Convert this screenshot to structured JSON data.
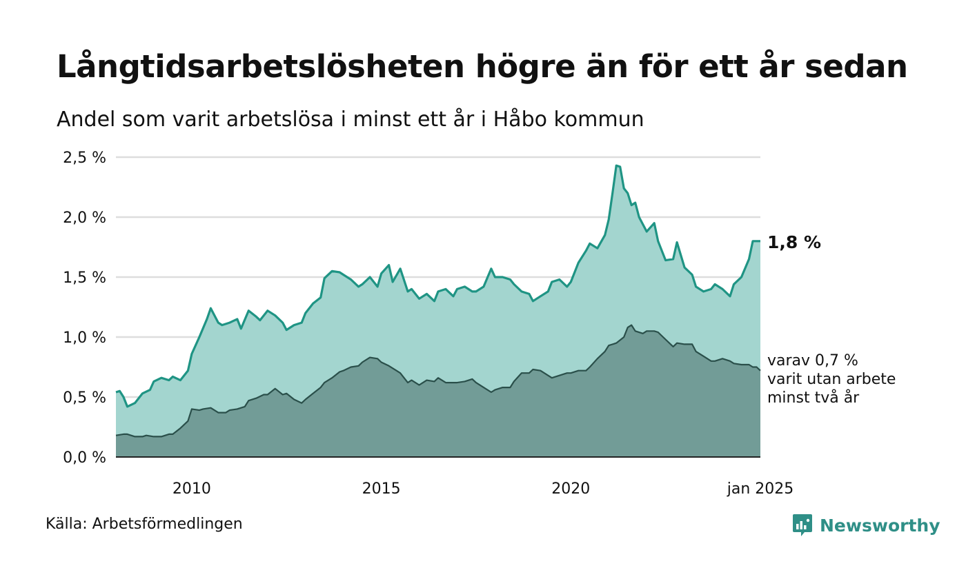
{
  "title": "Långtidsarbetslösheten högre än för ett år sedan",
  "subtitle": "Andel som varit arbetslösa i minst ett år i Håbo kommun",
  "source": "Källa: Arbetsförmedlingen",
  "brand": {
    "name": "Newsworthy",
    "icon": "newsworthy-logo-icon",
    "color": "#2f8f87"
  },
  "colors": {
    "total_line": "#1f9484",
    "total_fill": "#a3d5cf",
    "sub_line": "#2a4f4a",
    "sub_fill": "#729c97",
    "grid": "#dddddd",
    "axis": "#222222"
  },
  "chart_data": {
    "type": "area",
    "xlabel": "",
    "ylabel": "",
    "ylim": [
      0,
      2.5
    ],
    "y_ticks": [
      0,
      0.5,
      1.0,
      1.5,
      2.0,
      2.5
    ],
    "y_tick_labels": [
      "0,0 %",
      "0,5 %",
      "1,0 %",
      "1,5 %",
      "2,0 %",
      "2,5 %"
    ],
    "x_range": [
      2008.0,
      2025.0
    ],
    "x_ticks": [
      2010,
      2015,
      2020,
      2025
    ],
    "x_tick_labels": [
      "2010",
      "2015",
      "2020",
      "jan 2025"
    ],
    "grid": "horizontal",
    "series": [
      {
        "key": "total",
        "x": [
          2008.0,
          2008.1,
          2008.2,
          2008.3,
          2008.5,
          2008.7,
          2008.9,
          2009.0,
          2009.2,
          2009.4,
          2009.5,
          2009.7,
          2009.9,
          2010.0,
          2010.2,
          2010.4,
          2010.5,
          2010.7,
          2010.8,
          2011.0,
          2011.2,
          2011.3,
          2011.5,
          2011.7,
          2011.8,
          2012.0,
          2012.2,
          2012.4,
          2012.5,
          2012.7,
          2012.9,
          2013.0,
          2013.2,
          2013.4,
          2013.5,
          2013.7,
          2013.9,
          2014.0,
          2014.2,
          2014.4,
          2014.5,
          2014.7,
          2014.9,
          2015.0,
          2015.2,
          2015.3,
          2015.5,
          2015.7,
          2015.8,
          2016.0,
          2016.2,
          2016.4,
          2016.5,
          2016.7,
          2016.9,
          2017.0,
          2017.2,
          2017.4,
          2017.5,
          2017.7,
          2017.9,
          2018.0,
          2018.2,
          2018.4,
          2018.5,
          2018.7,
          2018.9,
          2019.0,
          2019.2,
          2019.4,
          2019.5,
          2019.7,
          2019.9,
          2020.0,
          2020.2,
          2020.4,
          2020.5,
          2020.7,
          2020.9,
          2021.0,
          2021.1,
          2021.2,
          2021.3,
          2021.4,
          2021.5,
          2021.6,
          2021.7,
          2021.8,
          2022.0,
          2022.2,
          2022.3,
          2022.5,
          2022.7,
          2022.8,
          2023.0,
          2023.2,
          2023.3,
          2023.5,
          2023.7,
          2023.8,
          2024.0,
          2024.2,
          2024.3,
          2024.5,
          2024.7,
          2024.8,
          2024.9,
          2025.0
        ],
        "values": [
          0.54,
          0.55,
          0.5,
          0.42,
          0.45,
          0.53,
          0.56,
          0.63,
          0.66,
          0.64,
          0.67,
          0.64,
          0.72,
          0.86,
          1.0,
          1.15,
          1.24,
          1.12,
          1.1,
          1.12,
          1.15,
          1.07,
          1.22,
          1.17,
          1.14,
          1.22,
          1.18,
          1.12,
          1.06,
          1.1,
          1.12,
          1.2,
          1.28,
          1.33,
          1.49,
          1.55,
          1.54,
          1.52,
          1.48,
          1.42,
          1.44,
          1.5,
          1.42,
          1.53,
          1.6,
          1.46,
          1.57,
          1.38,
          1.4,
          1.32,
          1.36,
          1.3,
          1.38,
          1.4,
          1.34,
          1.4,
          1.42,
          1.38,
          1.38,
          1.42,
          1.57,
          1.5,
          1.5,
          1.48,
          1.44,
          1.38,
          1.36,
          1.3,
          1.34,
          1.38,
          1.46,
          1.48,
          1.42,
          1.46,
          1.62,
          1.72,
          1.78,
          1.74,
          1.85,
          1.98,
          2.2,
          2.43,
          2.42,
          2.24,
          2.2,
          2.1,
          2.12,
          2.0,
          1.88,
          1.95,
          1.8,
          1.64,
          1.65,
          1.79,
          1.58,
          1.52,
          1.42,
          1.38,
          1.4,
          1.44,
          1.4,
          1.34,
          1.44,
          1.5,
          1.65,
          1.8,
          1.8,
          1.8
        ]
      },
      {
        "key": "sub",
        "x": [
          2008.0,
          2008.2,
          2008.3,
          2008.5,
          2008.7,
          2008.8,
          2009.0,
          2009.2,
          2009.4,
          2009.5,
          2009.7,
          2009.9,
          2010.0,
          2010.2,
          2010.3,
          2010.5,
          2010.7,
          2010.9,
          2011.0,
          2011.2,
          2011.4,
          2011.5,
          2011.7,
          2011.9,
          2012.0,
          2012.2,
          2012.4,
          2012.5,
          2012.7,
          2012.9,
          2013.0,
          2013.2,
          2013.4,
          2013.5,
          2013.7,
          2013.9,
          2014.0,
          2014.2,
          2014.4,
          2014.5,
          2014.7,
          2014.9,
          2015.0,
          2015.2,
          2015.4,
          2015.5,
          2015.7,
          2015.8,
          2016.0,
          2016.2,
          2016.4,
          2016.5,
          2016.7,
          2016.9,
          2017.0,
          2017.2,
          2017.4,
          2017.5,
          2017.7,
          2017.9,
          2018.0,
          2018.2,
          2018.4,
          2018.5,
          2018.7,
          2018.9,
          2019.0,
          2019.2,
          2019.4,
          2019.5,
          2019.7,
          2019.9,
          2020.0,
          2020.2,
          2020.4,
          2020.5,
          2020.7,
          2020.9,
          2021.0,
          2021.2,
          2021.4,
          2021.5,
          2021.6,
          2021.7,
          2021.9,
          2022.0,
          2022.2,
          2022.3,
          2022.5,
          2022.7,
          2022.8,
          2023.0,
          2023.2,
          2023.3,
          2023.5,
          2023.7,
          2023.8,
          2024.0,
          2024.2,
          2024.3,
          2024.5,
          2024.7,
          2024.8,
          2024.9,
          2025.0
        ],
        "values": [
          0.18,
          0.19,
          0.19,
          0.17,
          0.17,
          0.18,
          0.17,
          0.17,
          0.19,
          0.19,
          0.24,
          0.3,
          0.4,
          0.39,
          0.4,
          0.41,
          0.37,
          0.37,
          0.39,
          0.4,
          0.42,
          0.47,
          0.49,
          0.52,
          0.52,
          0.57,
          0.52,
          0.53,
          0.48,
          0.45,
          0.48,
          0.53,
          0.58,
          0.62,
          0.66,
          0.71,
          0.72,
          0.75,
          0.76,
          0.79,
          0.83,
          0.82,
          0.79,
          0.76,
          0.72,
          0.7,
          0.62,
          0.64,
          0.6,
          0.64,
          0.63,
          0.66,
          0.62,
          0.62,
          0.62,
          0.63,
          0.65,
          0.62,
          0.58,
          0.54,
          0.56,
          0.58,
          0.58,
          0.63,
          0.7,
          0.7,
          0.73,
          0.72,
          0.68,
          0.66,
          0.68,
          0.7,
          0.7,
          0.72,
          0.72,
          0.75,
          0.82,
          0.88,
          0.93,
          0.95,
          1.0,
          1.08,
          1.1,
          1.05,
          1.03,
          1.05,
          1.05,
          1.04,
          0.98,
          0.92,
          0.95,
          0.94,
          0.94,
          0.88,
          0.84,
          0.8,
          0.8,
          0.82,
          0.8,
          0.78,
          0.77,
          0.77,
          0.75,
          0.75,
          0.72
        ]
      }
    ],
    "annotations": [
      {
        "key": "total",
        "text": "1,8 %"
      },
      {
        "key": "sub",
        "lines": [
          "varav 0,7 %",
          "varit utan arbete",
          "minst två år"
        ]
      }
    ]
  }
}
